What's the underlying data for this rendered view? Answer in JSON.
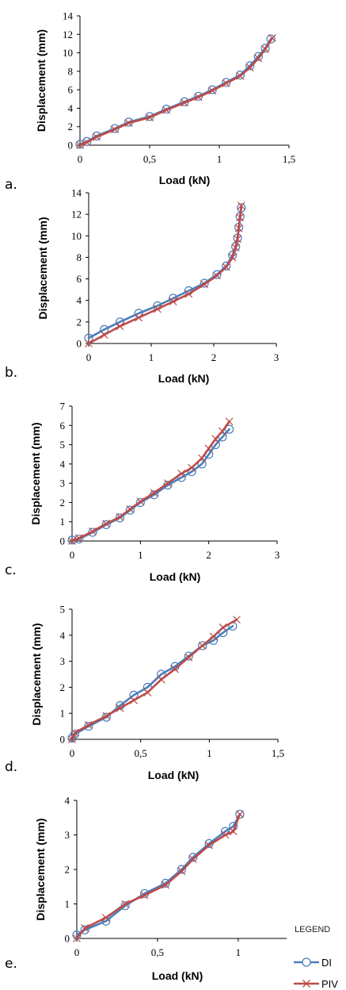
{
  "colors": {
    "DI": "#4a7ebb",
    "PIV": "#be4b48",
    "axis": "#000000"
  },
  "legend": {
    "title": "LEGEND",
    "entries": [
      {
        "name": "DI",
        "marker": "circle"
      },
      {
        "name": "PIV",
        "marker": "x"
      }
    ]
  },
  "chart_data": [
    {
      "panel": "a.",
      "type": "line",
      "xlabel": "Load (kN)",
      "ylabel": "Displacement (mm)",
      "xlim": [
        0,
        1.5
      ],
      "ylim": [
        0,
        14
      ],
      "xticks": [
        "0",
        "0,5",
        "1",
        "1,5"
      ],
      "yticks": [
        "0",
        "2",
        "4",
        "6",
        "8",
        "10",
        "12",
        "14"
      ],
      "series": [
        {
          "name": "DI",
          "x": [
            0,
            0.05,
            0.12,
            0.25,
            0.35,
            0.5,
            0.62,
            0.75,
            0.85,
            0.95,
            1.05,
            1.15,
            1.22,
            1.28,
            1.33,
            1.37
          ],
          "y": [
            0.1,
            0.4,
            1.0,
            1.8,
            2.5,
            3.1,
            3.9,
            4.7,
            5.3,
            6.0,
            6.8,
            7.6,
            8.6,
            9.6,
            10.5,
            11.5
          ]
        },
        {
          "name": "PIV",
          "x": [
            0,
            0.05,
            0.12,
            0.25,
            0.35,
            0.5,
            0.62,
            0.75,
            0.85,
            0.95,
            1.05,
            1.15,
            1.22,
            1.28,
            1.33,
            1.38
          ],
          "y": [
            0.0,
            0.3,
            0.9,
            1.7,
            2.4,
            3.0,
            3.8,
            4.6,
            5.2,
            5.9,
            6.7,
            7.5,
            8.4,
            9.4,
            10.4,
            11.6
          ]
        }
      ]
    },
    {
      "panel": "b.",
      "type": "line",
      "xlabel": "Load (kN)",
      "ylabel": "Displacement (mm)",
      "xlim": [
        0,
        3
      ],
      "ylim": [
        0,
        14
      ],
      "xticks": [
        "0",
        "1",
        "2",
        "3"
      ],
      "yticks": [
        "0",
        "2",
        "4",
        "6",
        "8",
        "10",
        "12",
        "14"
      ],
      "series": [
        {
          "name": "DI",
          "x": [
            0,
            0.25,
            0.5,
            0.8,
            1.1,
            1.35,
            1.6,
            1.85,
            2.05,
            2.2,
            2.3,
            2.35,
            2.38,
            2.4,
            2.42,
            2.44
          ],
          "y": [
            0.5,
            1.3,
            2.0,
            2.8,
            3.5,
            4.2,
            4.9,
            5.6,
            6.4,
            7.2,
            8.2,
            9.0,
            9.8,
            10.8,
            11.8,
            12.6
          ]
        },
        {
          "name": "PIV",
          "x": [
            0,
            0.25,
            0.5,
            0.8,
            1.1,
            1.35,
            1.6,
            1.85,
            2.05,
            2.2,
            2.3,
            2.35,
            2.38,
            2.4,
            2.42,
            2.44
          ],
          "y": [
            0.0,
            0.8,
            1.6,
            2.4,
            3.2,
            3.9,
            4.6,
            5.5,
            6.3,
            7.1,
            8.0,
            8.9,
            9.7,
            10.7,
            11.7,
            12.8
          ]
        }
      ]
    },
    {
      "panel": "c.",
      "type": "line",
      "xlabel": "Load (kN)",
      "ylabel": "Displacement (mm)",
      "xlim": [
        0,
        3
      ],
      "ylim": [
        0,
        7
      ],
      "xticks": [
        "0",
        "1",
        "2",
        "3"
      ],
      "yticks": [
        "0",
        "1",
        "2",
        "3",
        "4",
        "5",
        "6",
        "7"
      ],
      "series": [
        {
          "name": "DI",
          "x": [
            0,
            0.1,
            0.3,
            0.5,
            0.7,
            0.85,
            1.0,
            1.2,
            1.4,
            1.6,
            1.75,
            1.9,
            2.0,
            2.1,
            2.2,
            2.3
          ],
          "y": [
            0.05,
            0.1,
            0.45,
            0.85,
            1.2,
            1.6,
            2.0,
            2.4,
            2.9,
            3.3,
            3.6,
            4.0,
            4.5,
            5.0,
            5.4,
            5.8
          ]
        },
        {
          "name": "PIV",
          "x": [
            0,
            0.1,
            0.3,
            0.5,
            0.7,
            0.85,
            1.0,
            1.2,
            1.4,
            1.6,
            1.75,
            1.9,
            2.0,
            2.1,
            2.2,
            2.3
          ],
          "y": [
            0.0,
            0.15,
            0.5,
            0.9,
            1.25,
            1.65,
            2.05,
            2.5,
            3.0,
            3.5,
            3.8,
            4.3,
            4.8,
            5.3,
            5.7,
            6.2
          ]
        }
      ]
    },
    {
      "panel": "d.",
      "type": "line",
      "xlabel": "Load (kN)",
      "ylabel": "Displacement (mm)",
      "xlim": [
        0,
        1.5
      ],
      "ylim": [
        0,
        5
      ],
      "xticks": [
        "0",
        "0,5",
        "1",
        "1,5"
      ],
      "yticks": [
        "0",
        "1",
        "2",
        "3",
        "4",
        "5"
      ],
      "series": [
        {
          "name": "DI",
          "x": [
            0,
            0.02,
            0.12,
            0.25,
            0.35,
            0.45,
            0.55,
            0.65,
            0.75,
            0.85,
            0.95,
            1.03,
            1.1,
            1.17
          ],
          "y": [
            0.05,
            0.2,
            0.5,
            0.85,
            1.3,
            1.7,
            2.0,
            2.5,
            2.8,
            3.2,
            3.6,
            3.8,
            4.1,
            4.35
          ]
        },
        {
          "name": "PIV",
          "x": [
            0,
            0.02,
            0.12,
            0.25,
            0.35,
            0.45,
            0.55,
            0.65,
            0.75,
            0.85,
            0.95,
            1.03,
            1.1,
            1.2
          ],
          "y": [
            0.0,
            0.25,
            0.55,
            0.9,
            1.2,
            1.5,
            1.8,
            2.3,
            2.7,
            3.15,
            3.6,
            3.95,
            4.3,
            4.6
          ]
        }
      ]
    },
    {
      "panel": "e.",
      "type": "line",
      "xlabel": "Load (kN)",
      "ylabel": "Displacement (mm)",
      "xlim": [
        0,
        1.3
      ],
      "ylim": [
        0,
        4
      ],
      "xticks": [
        "0",
        "0,5",
        "1"
      ],
      "yticks": [
        "0",
        "1",
        "2",
        "3",
        "4"
      ],
      "series": [
        {
          "name": "DI",
          "x": [
            0,
            0.05,
            0.18,
            0.3,
            0.42,
            0.55,
            0.65,
            0.72,
            0.82,
            0.92,
            0.97,
            1.01
          ],
          "y": [
            0.1,
            0.25,
            0.5,
            0.95,
            1.3,
            1.6,
            2.0,
            2.35,
            2.75,
            3.1,
            3.25,
            3.6
          ]
        },
        {
          "name": "PIV",
          "x": [
            0,
            0.05,
            0.18,
            0.3,
            0.42,
            0.55,
            0.65,
            0.72,
            0.82,
            0.92,
            0.97,
            1.01
          ],
          "y": [
            0.0,
            0.3,
            0.6,
            1.0,
            1.25,
            1.55,
            1.95,
            2.3,
            2.7,
            3.0,
            3.1,
            3.6
          ]
        }
      ]
    }
  ]
}
